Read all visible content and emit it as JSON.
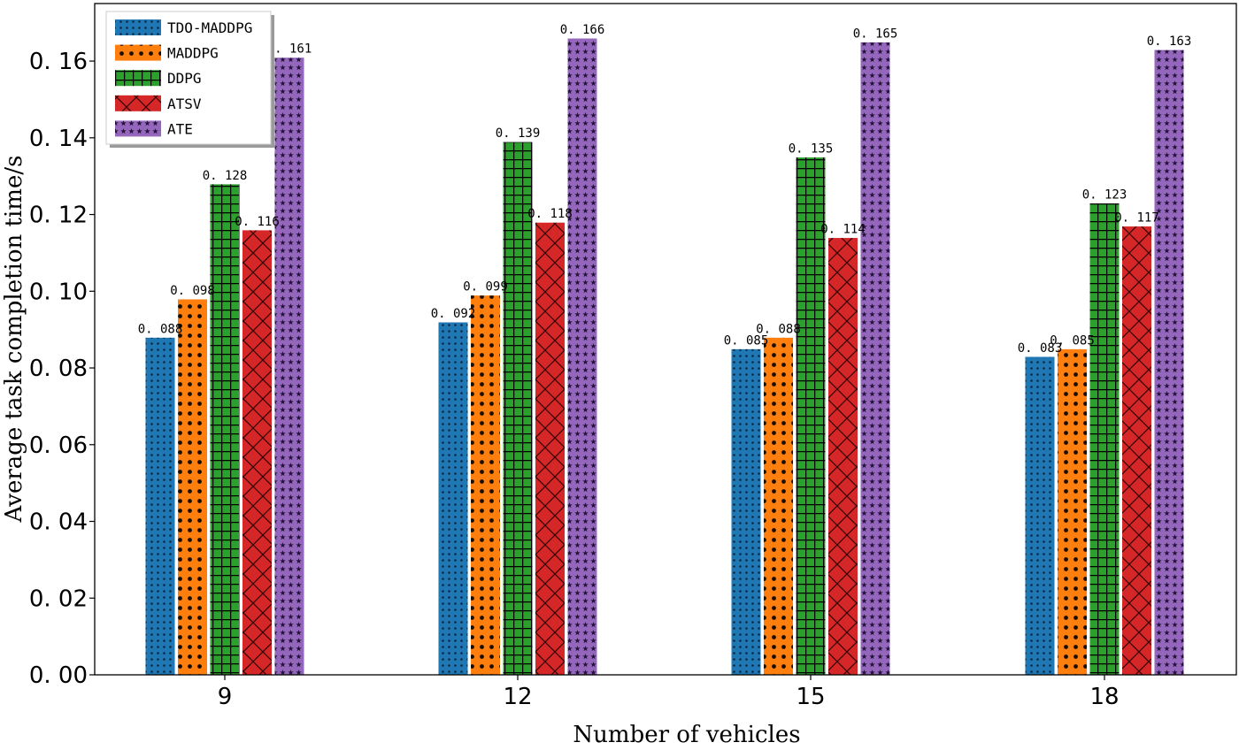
{
  "chart_data": {
    "type": "bar",
    "xlabel": "Number of vehicles",
    "ylabel": "Average task completion time/s",
    "categories": [
      "9",
      "12",
      "15",
      "18"
    ],
    "ylim": [
      0,
      0.175
    ],
    "yticks": [
      "0. 00",
      "0. 02",
      "0. 04",
      "0. 06",
      "0. 08",
      "0. 10",
      "0. 12",
      "0. 14",
      "0. 16"
    ],
    "ytick_values": [
      0,
      0.02,
      0.04,
      0.06,
      0.08,
      0.1,
      0.12,
      0.14,
      0.16
    ],
    "grid": false,
    "legend_position": "top-left",
    "series": [
      {
        "name": "TDO-MADDPG",
        "color": "#1f77b4",
        "pattern": "dots-small",
        "values": [
          0.088,
          0.092,
          0.085,
          0.083
        ],
        "labels": [
          "0. 088",
          "0. 092",
          "0. 085",
          "0. 083"
        ]
      },
      {
        "name": "MADDPG",
        "color": "#ff7f0e",
        "pattern": "dots-large",
        "values": [
          0.098,
          0.099,
          0.088,
          0.085
        ],
        "labels": [
          "0. 098",
          "0. 099",
          "0. 088",
          "0. 085"
        ]
      },
      {
        "name": "DDPG",
        "color": "#2ca02c",
        "pattern": "grid",
        "values": [
          0.128,
          0.139,
          0.135,
          0.123
        ],
        "labels": [
          "0. 128",
          "0. 139",
          "0. 135",
          "0. 123"
        ]
      },
      {
        "name": "ATSV",
        "color": "#d62728",
        "pattern": "cross",
        "values": [
          0.116,
          0.118,
          0.114,
          0.117
        ],
        "labels": [
          "0. 116",
          "0. 118",
          "0. 114",
          "0. 117"
        ]
      },
      {
        "name": "ATE",
        "color": "#9467bd",
        "pattern": "stars",
        "values": [
          0.161,
          0.166,
          0.165,
          0.163
        ],
        "labels": [
          "0. 161",
          "0. 166",
          "0. 165",
          "0. 163"
        ]
      }
    ]
  }
}
